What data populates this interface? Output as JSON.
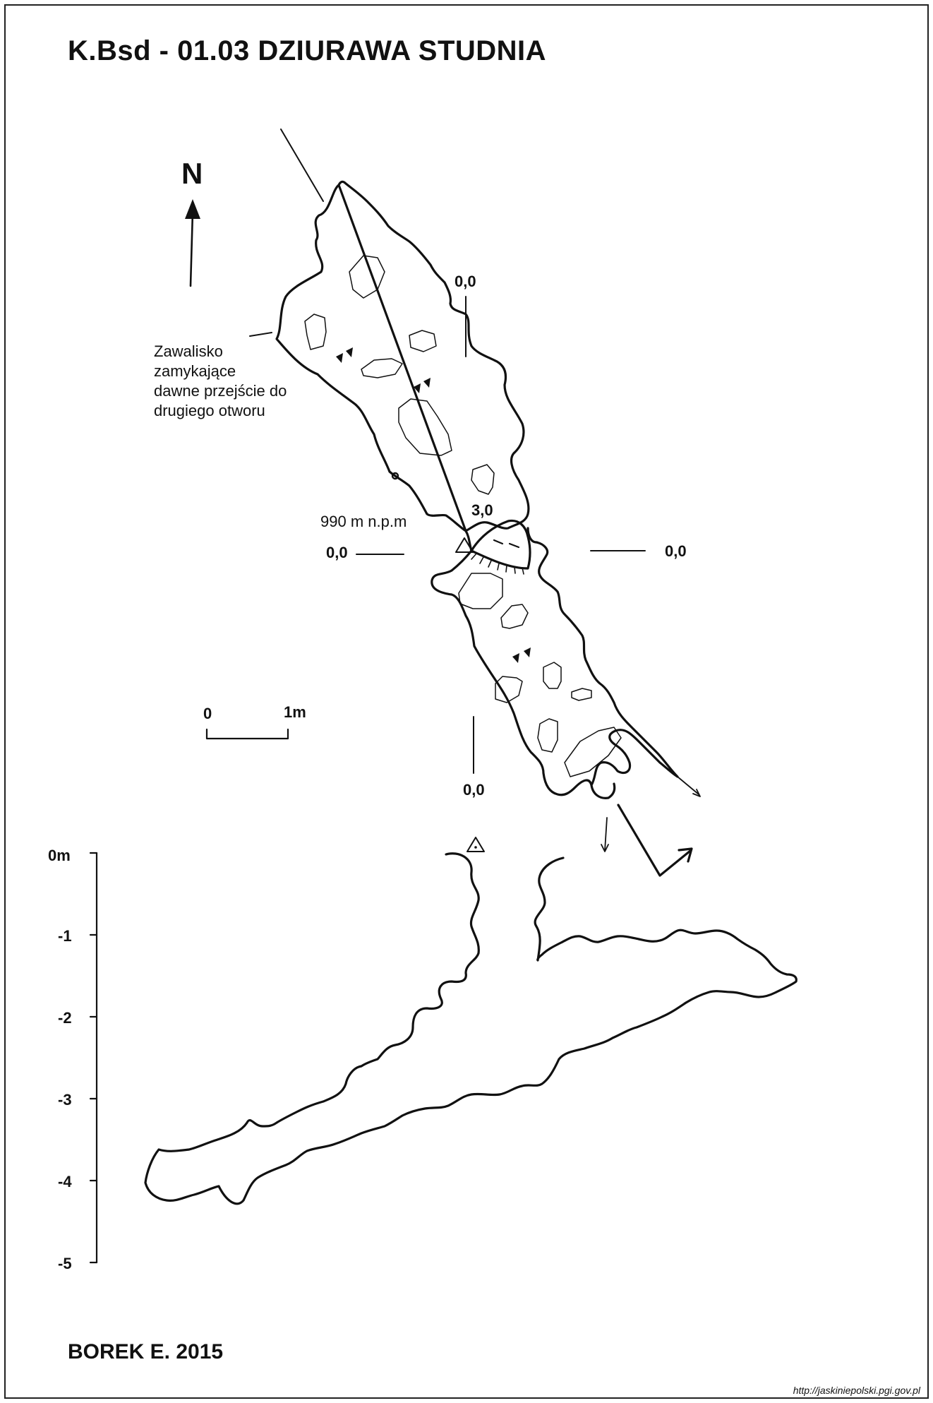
{
  "title": "K.Bsd - 01.03  DZIURAWA STUDNIA",
  "north_label": "N",
  "note_lines": [
    "Zawalisko",
    "zamykające",
    "dawne przejście do",
    "drugiego otworu"
  ],
  "elevation": "990 m n.p.m",
  "depth_label": "3,0",
  "section_marks": [
    "0,0",
    "0,0",
    "0,0",
    "0,0"
  ],
  "scale_bar": {
    "start": "0",
    "end": "1m"
  },
  "depth_scale": [
    "0m",
    "-1",
    "-2",
    "-3",
    "-4",
    "-5"
  ],
  "author": "BOREK E. 2015",
  "url": "http://jaskiniepolski.pgi.gov.pl"
}
